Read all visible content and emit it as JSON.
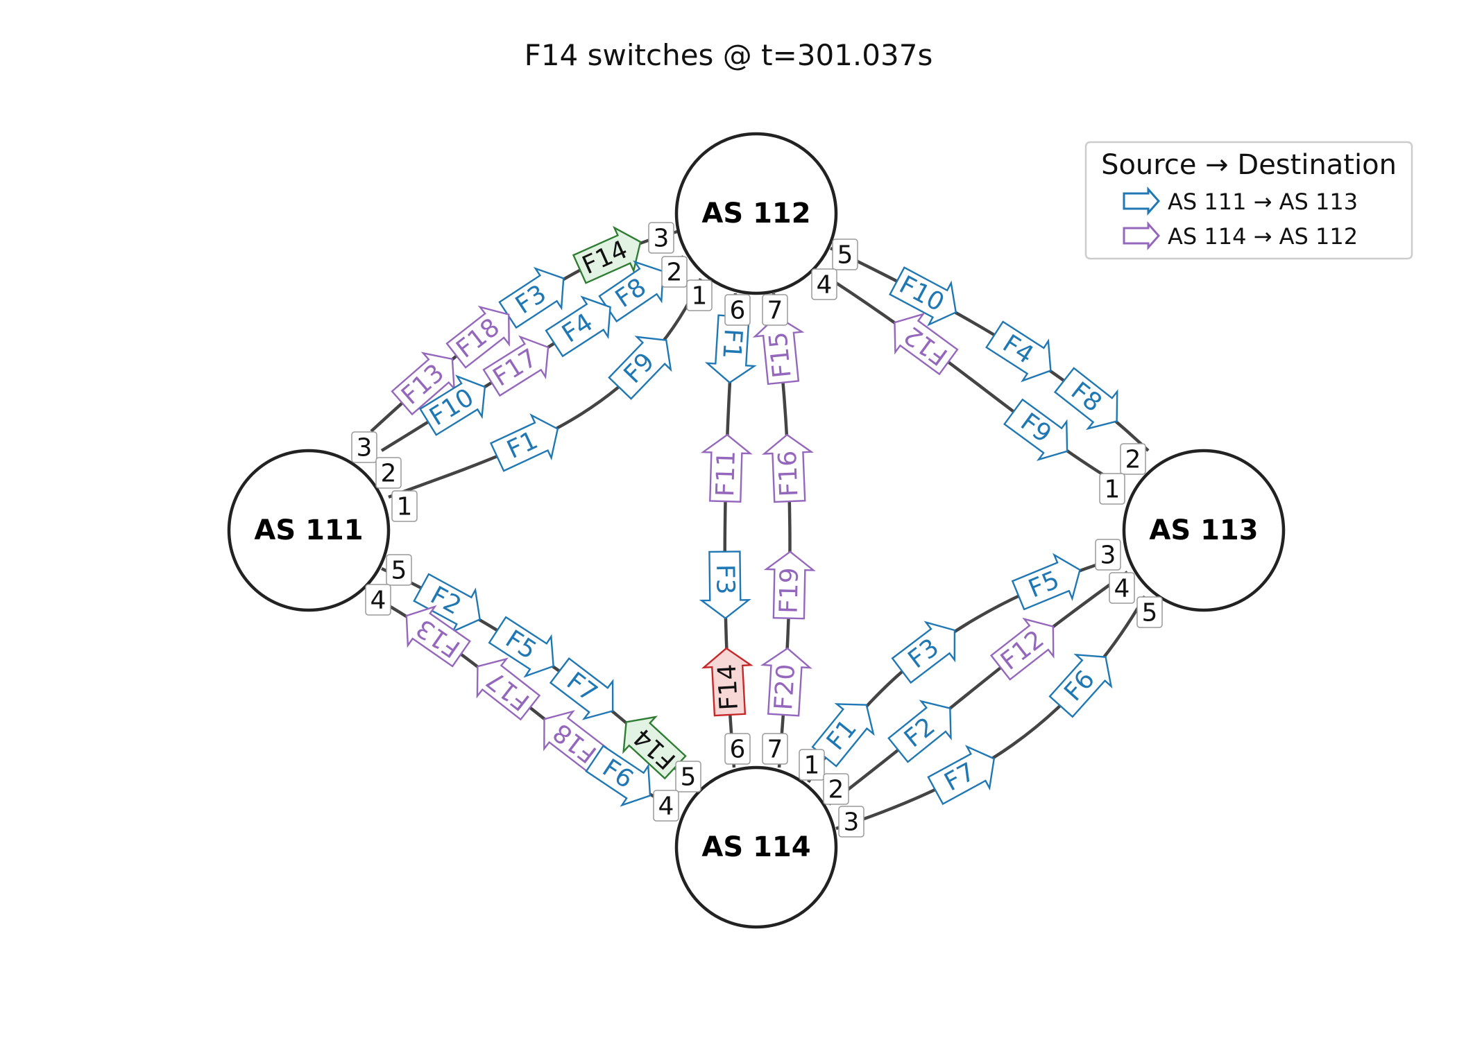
{
  "title": "F14 switches @ t=301.037s",
  "colors": {
    "blue": "#1f77b4",
    "purple": "#9467bd",
    "green": "#2e7d32",
    "green_fill": "#e3f3e3",
    "red": "#c62828",
    "red_fill": "#f8d7d7",
    "edge": "#444444",
    "node_stroke": "#222222"
  },
  "legend": {
    "title": "Source → Destination",
    "items": [
      {
        "label": "AS 111 → AS 113",
        "color": "blue"
      },
      {
        "label": "AS 114 → AS 112",
        "color": "purple"
      }
    ]
  },
  "nodes": [
    {
      "id": "as111",
      "label": "AS 111"
    },
    {
      "id": "as112",
      "label": "AS 112"
    },
    {
      "id": "as113",
      "label": "AS 113"
    },
    {
      "id": "as114",
      "label": "AS 114"
    }
  ],
  "links": [
    {
      "id": "L1",
      "from": "as111",
      "from_port": "3",
      "to": "as112",
      "to_port": "3"
    },
    {
      "id": "L2",
      "from": "as111",
      "from_port": "2",
      "to": "as112",
      "to_port": "2"
    },
    {
      "id": "L3",
      "from": "as111",
      "from_port": "1",
      "to": "as112",
      "to_port": "1"
    },
    {
      "id": "L4",
      "from": "as112",
      "from_port": "5",
      "to": "as113",
      "to_port": "2"
    },
    {
      "id": "L5",
      "from": "as112",
      "from_port": "4",
      "to": "as113",
      "to_port": "1"
    },
    {
      "id": "L6",
      "from": "as112",
      "from_port": "6",
      "to": "as114",
      "to_port": "6"
    },
    {
      "id": "L7",
      "from": "as112",
      "from_port": "7",
      "to": "as114",
      "to_port": "7"
    },
    {
      "id": "L8",
      "from": "as111",
      "from_port": "5",
      "to": "as114",
      "to_port": "5"
    },
    {
      "id": "L9",
      "from": "as111",
      "from_port": "4",
      "to": "as114",
      "to_port": "4"
    },
    {
      "id": "L10",
      "from": "as114",
      "from_port": "1",
      "to": "as113",
      "to_port": "3"
    },
    {
      "id": "L11",
      "from": "as114",
      "from_port": "2",
      "to": "as113",
      "to_port": "4"
    },
    {
      "id": "L12",
      "from": "as114",
      "from_port": "3",
      "to": "as113",
      "to_port": "5"
    }
  ],
  "flows": [
    {
      "label": "F14",
      "link": "L1",
      "color": "green",
      "highlight": true
    },
    {
      "label": "F3",
      "link": "L1",
      "color": "blue"
    },
    {
      "label": "F18",
      "link": "L1",
      "color": "purple"
    },
    {
      "label": "F13",
      "link": "L1",
      "color": "purple"
    },
    {
      "label": "F8",
      "link": "L2",
      "color": "blue"
    },
    {
      "label": "F4",
      "link": "L2",
      "color": "blue"
    },
    {
      "label": "F17",
      "link": "L2",
      "color": "purple"
    },
    {
      "label": "F10",
      "link": "L2",
      "color": "blue"
    },
    {
      "label": "F9",
      "link": "L3",
      "color": "blue"
    },
    {
      "label": "F1",
      "link": "L3",
      "color": "blue"
    },
    {
      "label": "F10",
      "link": "L4",
      "color": "blue"
    },
    {
      "label": "F4",
      "link": "L4",
      "color": "blue"
    },
    {
      "label": "F8",
      "link": "L4",
      "color": "blue"
    },
    {
      "label": "F12",
      "link": "L5",
      "color": "purple"
    },
    {
      "label": "F9",
      "link": "L5",
      "color": "blue"
    },
    {
      "label": "F1",
      "link": "L6",
      "color": "blue"
    },
    {
      "label": "F11",
      "link": "L6",
      "color": "purple"
    },
    {
      "label": "F3",
      "link": "L6",
      "color": "blue"
    },
    {
      "label": "F14",
      "link": "L6",
      "color": "red",
      "highlight": true
    },
    {
      "label": "F15",
      "link": "L7",
      "color": "purple"
    },
    {
      "label": "F16",
      "link": "L7",
      "color": "purple"
    },
    {
      "label": "F19",
      "link": "L7",
      "color": "purple"
    },
    {
      "label": "F20",
      "link": "L7",
      "color": "purple"
    },
    {
      "label": "F2",
      "link": "L8",
      "color": "blue"
    },
    {
      "label": "F5",
      "link": "L8",
      "color": "blue"
    },
    {
      "label": "F7",
      "link": "L8",
      "color": "blue"
    },
    {
      "label": "F14",
      "link": "L8",
      "color": "green",
      "highlight": true
    },
    {
      "label": "F13",
      "link": "L9",
      "color": "purple"
    },
    {
      "label": "F17",
      "link": "L9",
      "color": "purple"
    },
    {
      "label": "F18",
      "link": "L9",
      "color": "purple"
    },
    {
      "label": "F6",
      "link": "L9",
      "color": "blue"
    },
    {
      "label": "F1",
      "link": "L10",
      "color": "blue"
    },
    {
      "label": "F3",
      "link": "L10",
      "color": "blue"
    },
    {
      "label": "F5",
      "link": "L10",
      "color": "blue"
    },
    {
      "label": "F12",
      "link": "L11",
      "color": "purple"
    },
    {
      "label": "F2",
      "link": "L11",
      "color": "blue"
    },
    {
      "label": "F6",
      "link": "L12",
      "color": "blue"
    },
    {
      "label": "F7",
      "link": "L12",
      "color": "blue"
    }
  ]
}
